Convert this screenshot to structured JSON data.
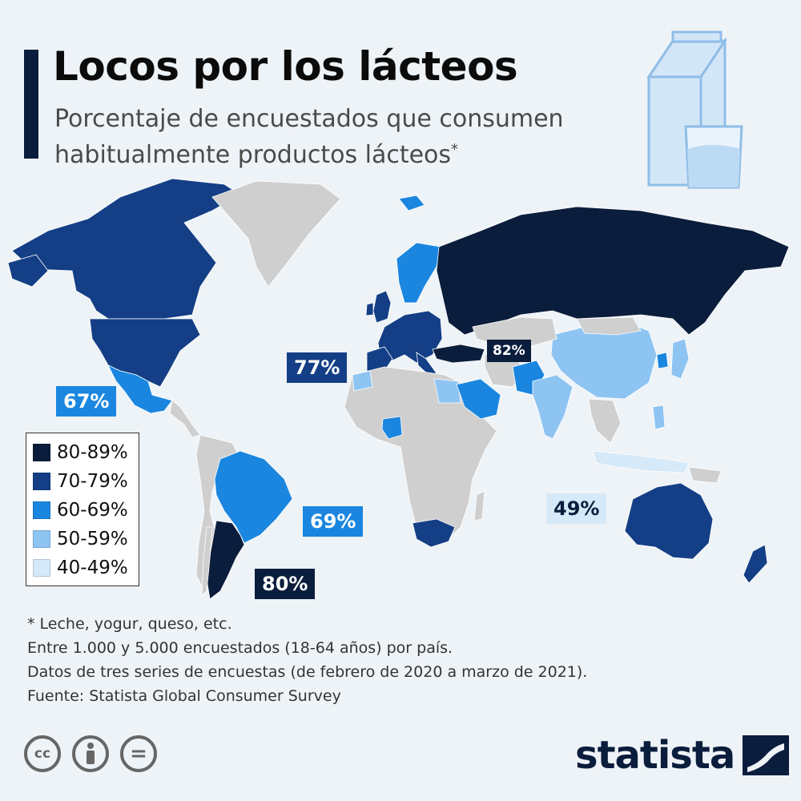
{
  "header": {
    "title": "Locos por los lácteos",
    "subtitle_line1": "Porcentaje de encuestados que consumen",
    "subtitle_line2": "habitualmente productos lácteos",
    "subtitle_mark": "*"
  },
  "colors": {
    "c80": "#0b1d3c",
    "c70": "#143f86",
    "c60": "#1a86e0",
    "c50": "#8ec4f2",
    "c40": "#d6e9f8",
    "nodata": "#cfcfcf"
  },
  "legend": {
    "items": [
      {
        "label": "80-89%",
        "color": "#0b1d3c"
      },
      {
        "label": "70-79%",
        "color": "#143f86"
      },
      {
        "label": "60-69%",
        "color": "#1a86e0"
      },
      {
        "label": "50-59%",
        "color": "#8ec4f2"
      },
      {
        "label": "40-49%",
        "color": "#d6e9f8"
      }
    ]
  },
  "callouts": {
    "europe": "77%",
    "turkey": "82%",
    "mexico": "67%",
    "brazil": "69%",
    "argentina": "80%",
    "indonesia": "49%"
  },
  "notes": {
    "line1": "* Leche, yogur, queso, etc.",
    "line2": "Entre 1.000 y 5.000 encuestados (18-64 años) por país.",
    "line3": "Datos de tres series de encuestas (de febrero de 2020 a marzo de 2021).",
    "line4": "Fuente: Statista Global Consumer Survey"
  },
  "license_icons": [
    "cc-icon",
    "by-person-icon",
    "equals-icon"
  ],
  "license_text": {
    "cc": "cc",
    "eq": "="
  },
  "brand": {
    "name": "statista",
    "logo_icon": "statista-logo-icon"
  }
}
